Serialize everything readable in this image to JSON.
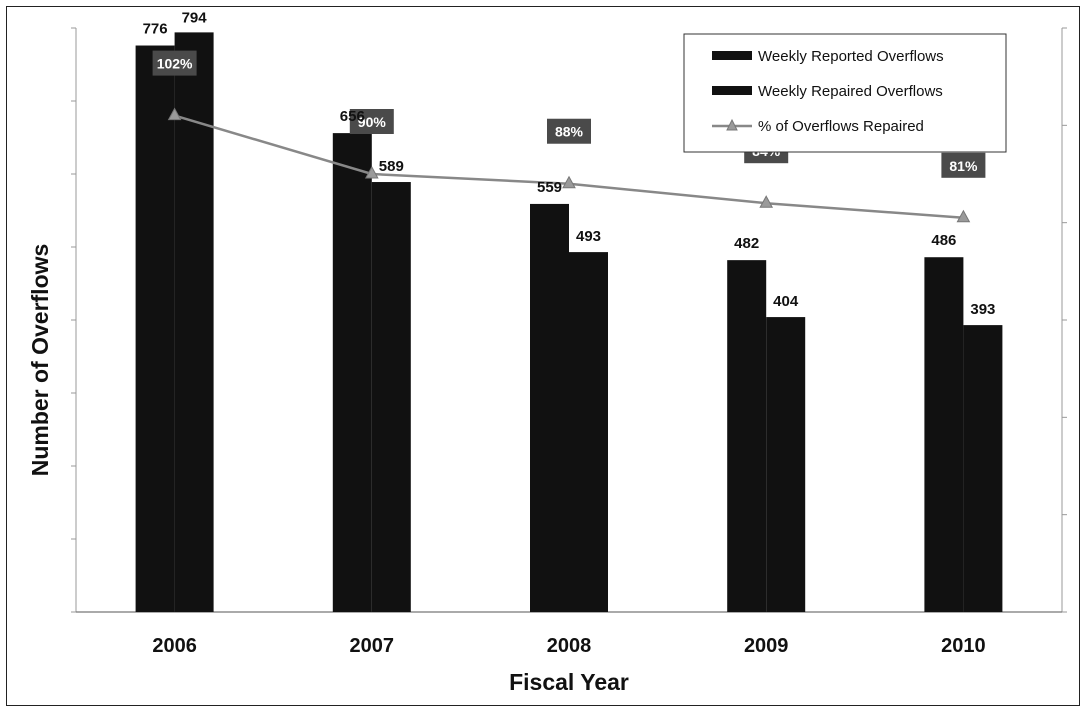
{
  "chart_data": {
    "type": "bar",
    "categories": [
      "2006",
      "2007",
      "2008",
      "2009",
      "2010"
    ],
    "series": [
      {
        "name": "Weekly Reported Overflows",
        "type": "bar",
        "values": [
          776,
          656,
          559,
          482,
          486
        ],
        "color": "#111111"
      },
      {
        "name": "Weekly Repaired Overflows",
        "type": "bar",
        "values": [
          794,
          589,
          493,
          404,
          393
        ],
        "color": "#111111"
      },
      {
        "name": "% of Overflows Repaired",
        "type": "line",
        "axis": "secondary",
        "values": [
          102,
          90,
          88,
          84,
          81
        ],
        "labels": [
          "102%",
          "90%",
          "88%",
          "84%",
          "81%"
        ],
        "color": "#888888"
      }
    ],
    "title": "",
    "xlabel": "Fiscal Year",
    "ylabel": "Number of Overflows",
    "ylim": [
      0,
      800
    ],
    "y2lim": [
      0,
      120
    ],
    "y_tick_labels_shown": false,
    "grid": false,
    "legend": "top-right"
  }
}
